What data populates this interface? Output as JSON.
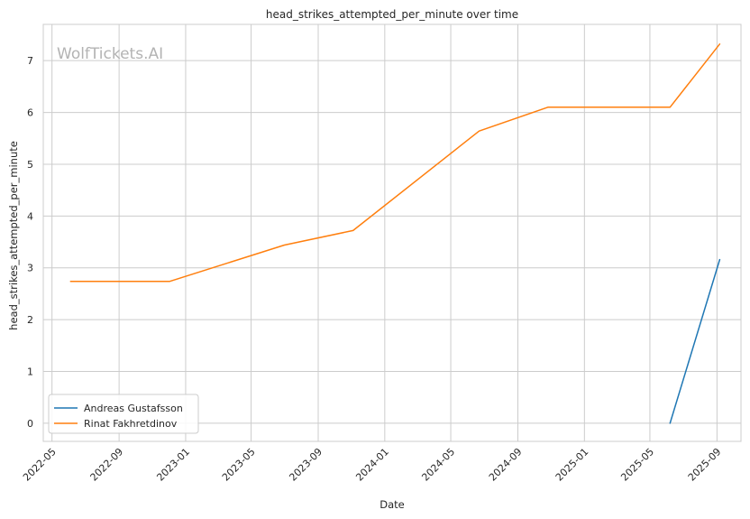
{
  "chart_data": {
    "type": "line",
    "title": "head_strikes_attempted_per_minute over time",
    "xlabel": "Date",
    "ylabel": "head_strikes_attempted_per_minute",
    "watermark": "WolfTickets.AI",
    "x_ticks": [
      "2022-05",
      "2022-09",
      "2023-01",
      "2023-05",
      "2023-09",
      "2024-01",
      "2024-05",
      "2024-09",
      "2025-01",
      "2025-05",
      "2025-09"
    ],
    "y_ticks": [
      "0",
      "1",
      "2",
      "3",
      "4",
      "5",
      "6",
      "7"
    ],
    "xlim": [
      "2022-04-15",
      "2025-10-15"
    ],
    "ylim": [
      -0.35,
      7.7
    ],
    "grid": true,
    "legend_position": "bottom-left",
    "series": [
      {
        "name": "Andreas Gustafsson",
        "color": "#1f77b4",
        "points": [
          {
            "x": "2025-06-07",
            "y": 0.0
          },
          {
            "x": "2025-09-06",
            "y": 3.16
          }
        ]
      },
      {
        "name": "Rinat Fakhretdinov",
        "color": "#ff7f0e",
        "points": [
          {
            "x": "2022-06-04",
            "y": 2.74
          },
          {
            "x": "2022-12-03",
            "y": 2.74
          },
          {
            "x": "2023-07-01",
            "y": 3.44
          },
          {
            "x": "2023-11-04",
            "y": 3.72
          },
          {
            "x": "2024-06-22",
            "y": 5.64
          },
          {
            "x": "2024-10-26",
            "y": 6.1
          },
          {
            "x": "2025-06-07",
            "y": 6.1
          },
          {
            "x": "2025-09-06",
            "y": 7.32
          }
        ]
      }
    ]
  }
}
